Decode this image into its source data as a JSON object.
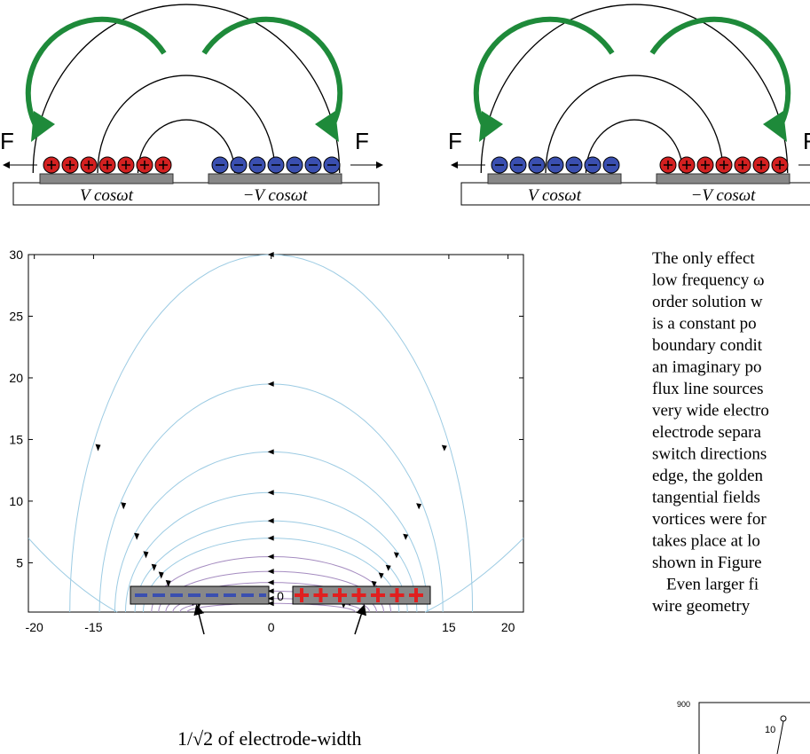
{
  "top_figure": {
    "panels": [
      {
        "force_left": "F",
        "force_right": "F",
        "electrode_left": "V cosωt",
        "electrode_right": "−V cosωt"
      },
      {
        "force_left": "F",
        "force_right": "F",
        "electrode_left": "V cosωt",
        "electrode_right": "−V cosωt"
      }
    ]
  },
  "field_plot": {
    "xlim": [
      -20.5,
      21.3
    ],
    "ylim": [
      1,
      30
    ],
    "xticks": [
      -20,
      -15,
      0,
      15,
      20
    ],
    "yticks": [
      5,
      10,
      15,
      20,
      25,
      30
    ],
    "annotation": "1/√2 of electrode-width"
  },
  "body_text": {
    "lines": [
      "The only effect",
      "low frequency ω",
      "order solution w",
      "is a constant po",
      "boundary condit",
      "an imaginary po",
      "flux line sources",
      "very wide electro",
      "electrode separa",
      "switch directions",
      "edge, the golden",
      "tangential fields",
      "vortices were for",
      "takes place at lo",
      "shown in Figure",
      "Even larger fi",
      "wire geometry"
    ]
  },
  "inset": {
    "tick_top": "900",
    "point_label": "10"
  }
}
